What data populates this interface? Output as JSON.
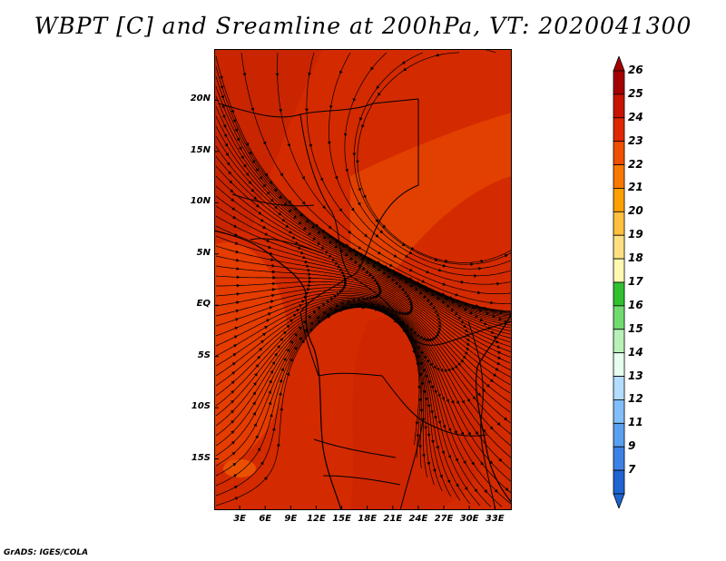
{
  "title": "WBPT [C] and Sreamline at 200hPa, VT: 2020041300",
  "footer": "GrADS: IGES/COLA",
  "lat_ticks": [
    {
      "label": "20N",
      "lat": 20
    },
    {
      "label": "15N",
      "lat": 15
    },
    {
      "label": "10N",
      "lat": 10
    },
    {
      "label": "5N",
      "lat": 5
    },
    {
      "label": "EQ",
      "lat": 0
    },
    {
      "label": "5S",
      "lat": -5
    },
    {
      "label": "10S",
      "lat": -10
    },
    {
      "label": "15S",
      "lat": -15
    }
  ],
  "lon_ticks": [
    {
      "label": "3E",
      "lon": 3
    },
    {
      "label": "6E",
      "lon": 6
    },
    {
      "label": "9E",
      "lon": 9
    },
    {
      "label": "12E",
      "lon": 12
    },
    {
      "label": "15E",
      "lon": 15
    },
    {
      "label": "18E",
      "lon": 18
    },
    {
      "label": "21E",
      "lon": 21
    },
    {
      "label": "24E",
      "lon": 24
    },
    {
      "label": "27E",
      "lon": 27
    },
    {
      "label": "30E",
      "lon": 30
    },
    {
      "label": "33E",
      "lon": 33
    }
  ],
  "extent": {
    "lon_min": 0,
    "lon_max": 35,
    "lat_min": -20,
    "lat_max": 25
  },
  "colorbar": {
    "labels": [
      "26",
      "25",
      "24",
      "23",
      "22",
      "21",
      "20",
      "19",
      "18",
      "17",
      "16",
      "15",
      "14",
      "13",
      "12",
      "11",
      "9",
      "7"
    ],
    "colors": [
      "#a50000",
      "#c81400",
      "#e02800",
      "#f04f00",
      "#fa7800",
      "#ffa000",
      "#ffc040",
      "#ffe080",
      "#fff8b0",
      "#30c030",
      "#70dc70",
      "#b8f0b8",
      "#e6fff0",
      "#b4dcff",
      "#82befa",
      "#5aa0f0",
      "#3c82e6",
      "#1e64d2"
    ]
  }
}
